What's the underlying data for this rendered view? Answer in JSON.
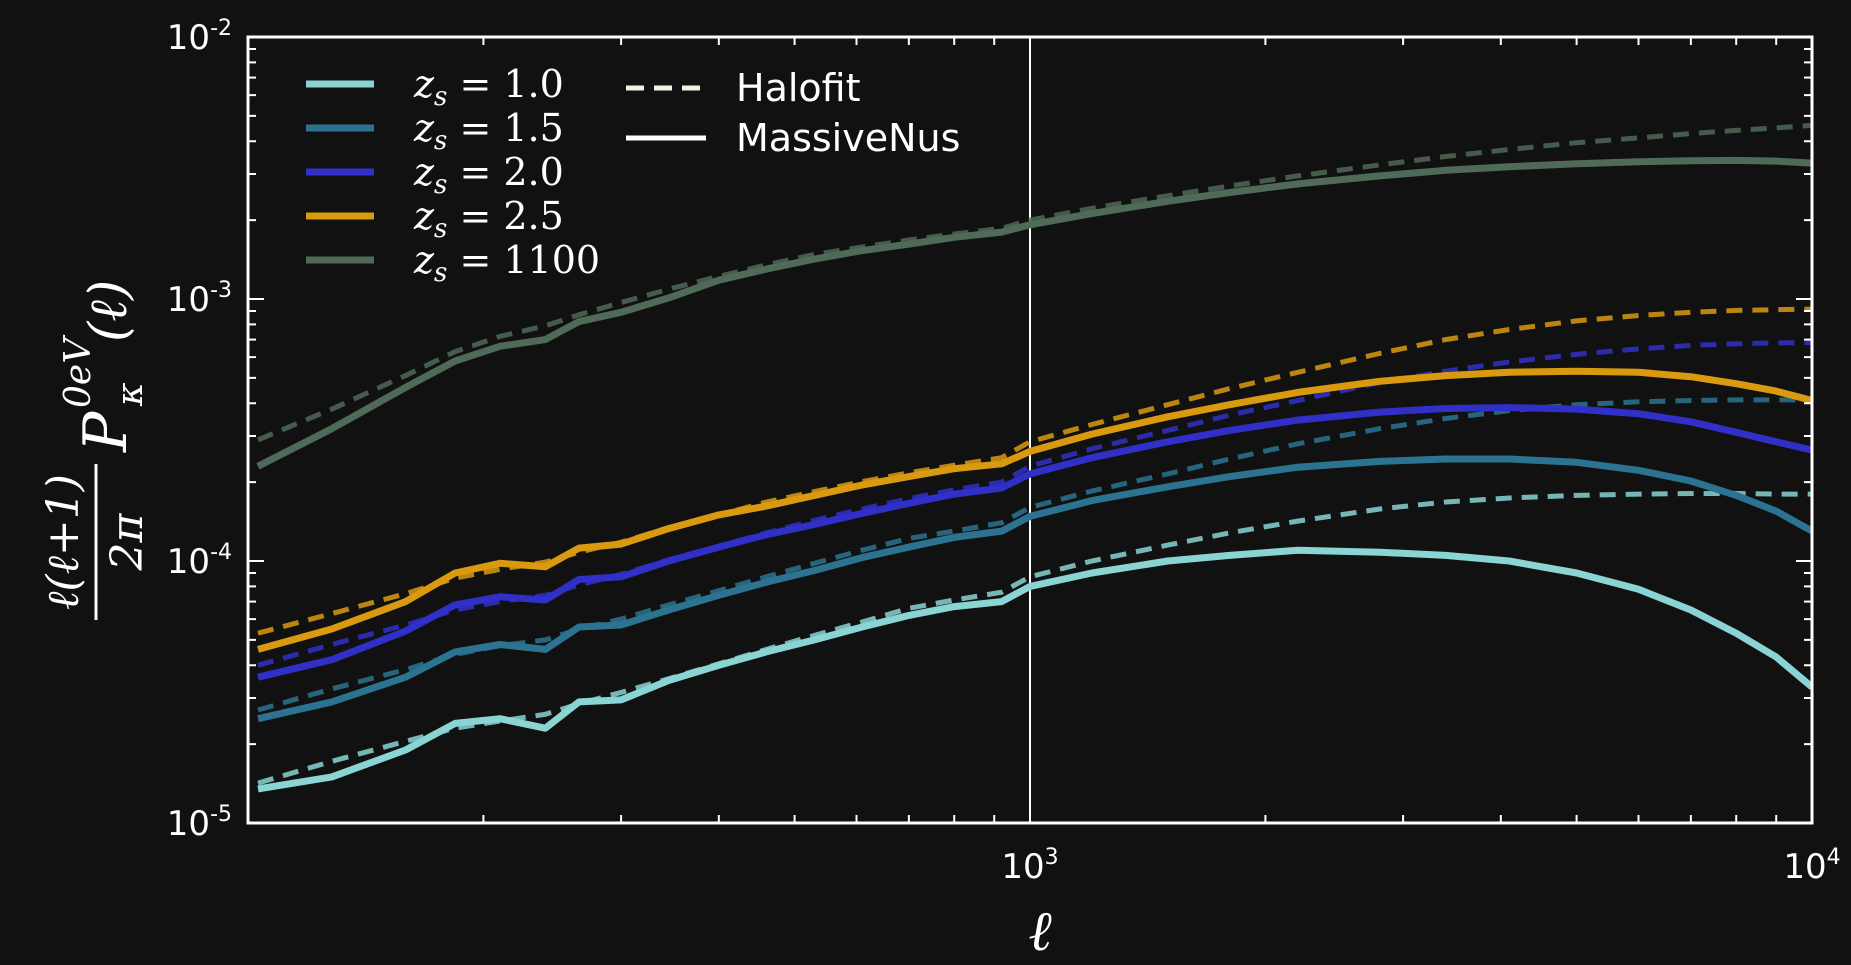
{
  "chart_data": {
    "type": "line",
    "xscale": "log",
    "yscale": "log",
    "xlim": [
      100,
      10000
    ],
    "ylim": [
      1e-05,
      0.01
    ],
    "xticks": [
      {
        "base": "10",
        "exp": "3",
        "value": 1000
      },
      {
        "base": "10",
        "exp": "4",
        "value": 10000
      }
    ],
    "yticks": [
      {
        "base": "10",
        "exp": "-2",
        "value": 0.01
      },
      {
        "base": "10",
        "exp": "-3",
        "value": 0.001
      },
      {
        "base": "10",
        "exp": "-4",
        "value": 0.0001
      },
      {
        "base": "10",
        "exp": "-5",
        "value": 1e-05
      }
    ],
    "xlabel": "ℓ",
    "ylabel": {
      "numerator": "ℓ(ℓ+1)",
      "denominator": "2π",
      "symbol": "P",
      "superscript": "0eV",
      "subscript": "κ",
      "argument": "(ℓ)"
    },
    "vline_x": 1000,
    "x": [
      103,
      128,
      159,
      184,
      210,
      240,
      265,
      300,
      345,
      400,
      460,
      530,
      610,
      700,
      800,
      920,
      1000,
      1200,
      1500,
      1800,
      2200,
      2800,
      3400,
      4100,
      5000,
      6000,
      7000,
      8000,
      9000,
      10000
    ],
    "legend": {
      "placement": "top-left",
      "redshift_entries": [
        {
          "prefix": "z",
          "sub": "s",
          "eq": " = ",
          "value": "1.0",
          "color": "#8ad4d4"
        },
        {
          "prefix": "z",
          "sub": "s",
          "eq": " = ",
          "value": "1.5",
          "color": "#2b7390"
        },
        {
          "prefix": "z",
          "sub": "s",
          "eq": " = ",
          "value": "2.0",
          "color": "#3030c8"
        },
        {
          "prefix": "z",
          "sub": "s",
          "eq": " = ",
          "value": "2.5",
          "color": "#d99a10"
        },
        {
          "prefix": "z",
          "sub": "s",
          "eq": " = ",
          "value": "1100",
          "color": "#4f6a58"
        }
      ],
      "style_entries": [
        {
          "label": "Halofit",
          "style": "dashed",
          "color": "#f2f2e0"
        },
        {
          "label": "MassiveNus",
          "style": "solid",
          "color": "#ffffff"
        }
      ]
    },
    "series": [
      {
        "name": "z_s = 1.0",
        "color": "#8ad4d4",
        "massivenus": [
          1.35e-05,
          1.5e-05,
          1.9e-05,
          2.4e-05,
          2.5e-05,
          2.3e-05,
          2.9e-05,
          2.95e-05,
          3.5e-05,
          4e-05,
          4.5e-05,
          5e-05,
          5.6e-05,
          6.2e-05,
          6.7e-05,
          7e-05,
          8e-05,
          9e-05,
          0.0001,
          0.000105,
          0.00011,
          0.000108,
          0.000105,
          0.0001,
          9e-05,
          7.8e-05,
          6.5e-05,
          5.3e-05,
          4.3e-05,
          3.3e-05
        ],
        "halofit": [
          1.42e-05,
          1.72e-05,
          2.05e-05,
          2.3e-05,
          2.45e-05,
          2.6e-05,
          2.85e-05,
          3.15e-05,
          3.55e-05,
          4.05e-05,
          4.6e-05,
          5.2e-05,
          5.85e-05,
          6.6e-05,
          7.1e-05,
          7.6e-05,
          8.7e-05,
          0.0001,
          0.000115,
          0.000128,
          0.000142,
          0.000158,
          0.000168,
          0.000174,
          0.000178,
          0.00018,
          0.000181,
          0.000181,
          0.00018,
          0.00018
        ]
      },
      {
        "name": "z_s = 1.5",
        "color": "#2b7390",
        "massivenus": [
          2.5e-05,
          2.9e-05,
          3.6e-05,
          4.5e-05,
          4.8e-05,
          4.6e-05,
          5.6e-05,
          5.7e-05,
          6.5e-05,
          7.4e-05,
          8.3e-05,
          9.2e-05,
          0.000103,
          0.000113,
          0.000123,
          0.00013,
          0.000148,
          0.00017,
          0.000192,
          0.00021,
          0.000228,
          0.00024,
          0.000245,
          0.000245,
          0.000238,
          0.000222,
          0.000202,
          0.000178,
          0.000155,
          0.00013
        ],
        "halofit": [
          2.7e-05,
          3.25e-05,
          3.85e-05,
          4.4e-05,
          4.75e-05,
          5e-05,
          5.5e-05,
          6e-05,
          6.8e-05,
          7.7e-05,
          8.7e-05,
          9.8e-05,
          0.00011,
          0.000122,
          0.00013,
          0.00014,
          0.00016,
          0.000185,
          0.000215,
          0.000245,
          0.00028,
          0.00032,
          0.00035,
          0.000375,
          0.000395,
          0.000405,
          0.00041,
          0.000412,
          0.000412,
          0.000412
        ]
      },
      {
        "name": "z_s = 2.0",
        "color": "#3030c8",
        "massivenus": [
          3.6e-05,
          4.2e-05,
          5.4e-05,
          6.8e-05,
          7.3e-05,
          7.1e-05,
          8.5e-05,
          8.7e-05,
          0.0001,
          0.000113,
          0.000126,
          0.000138,
          0.000152,
          0.000166,
          0.00018,
          0.00019,
          0.000215,
          0.000248,
          0.000285,
          0.000315,
          0.000345,
          0.00037,
          0.000382,
          0.000385,
          0.00038,
          0.000365,
          0.00034,
          0.00031,
          0.000285,
          0.000265
        ],
        "halofit": [
          4e-05,
          4.8e-05,
          5.7e-05,
          6.5e-05,
          7e-05,
          7.4e-05,
          8.1e-05,
          8.9e-05,
          0.000101,
          0.000114,
          0.000128,
          0.000143,
          0.000158,
          0.000173,
          0.000187,
          0.0002,
          0.00023,
          0.000268,
          0.000315,
          0.00036,
          0.00041,
          0.00048,
          0.00053,
          0.000575,
          0.000615,
          0.000645,
          0.000665,
          0.000675,
          0.00068,
          0.000682
        ]
      },
      {
        "name": "z_s = 2.5",
        "color": "#d99a10",
        "massivenus": [
          4.6e-05,
          5.5e-05,
          7e-05,
          9e-05,
          9.8e-05,
          9.5e-05,
          0.000112,
          0.000116,
          0.000133,
          0.00015,
          0.000162,
          0.000178,
          0.000195,
          0.00021,
          0.000225,
          0.000235,
          0.000262,
          0.000305,
          0.000355,
          0.000395,
          0.00044,
          0.000485,
          0.00051,
          0.000525,
          0.00053,
          0.000525,
          0.000505,
          0.000475,
          0.000445,
          0.00041
        ],
        "halofit": [
          5.3e-05,
          6.3e-05,
          7.5e-05,
          8.6e-05,
          9.3e-05,
          9.9e-05,
          0.000108,
          0.000118,
          0.000134,
          0.00015,
          0.000168,
          0.000184,
          0.000201,
          0.000217,
          0.000232,
          0.000248,
          0.000285,
          0.000332,
          0.000395,
          0.000455,
          0.000525,
          0.00062,
          0.0007,
          0.000765,
          0.000825,
          0.000865,
          0.00089,
          0.000905,
          0.00091,
          0.000915
        ]
      },
      {
        "name": "z_s = 1100",
        "color": "#4f6a58",
        "massivenus": [
          0.00023,
          0.00032,
          0.00046,
          0.00058,
          0.00066,
          0.0007,
          0.00082,
          0.00089,
          0.00101,
          0.00118,
          0.0013,
          0.00142,
          0.00153,
          0.00162,
          0.00172,
          0.0018,
          0.00192,
          0.00212,
          0.00236,
          0.00255,
          0.00275,
          0.00295,
          0.0031,
          0.0032,
          0.00328,
          0.00334,
          0.00337,
          0.00338,
          0.00336,
          0.0033
        ],
        "halofit": [
          0.00029,
          0.00038,
          0.00051,
          0.00063,
          0.00072,
          0.00079,
          0.00087,
          0.00097,
          0.00109,
          0.00122,
          0.00135,
          0.00148,
          0.00158,
          0.00168,
          0.00177,
          0.00186,
          0.002,
          0.00222,
          0.00248,
          0.0027,
          0.00295,
          0.00325,
          0.0035,
          0.00372,
          0.00395,
          0.00412,
          0.00428,
          0.0044,
          0.0045,
          0.0046
        ]
      }
    ]
  }
}
